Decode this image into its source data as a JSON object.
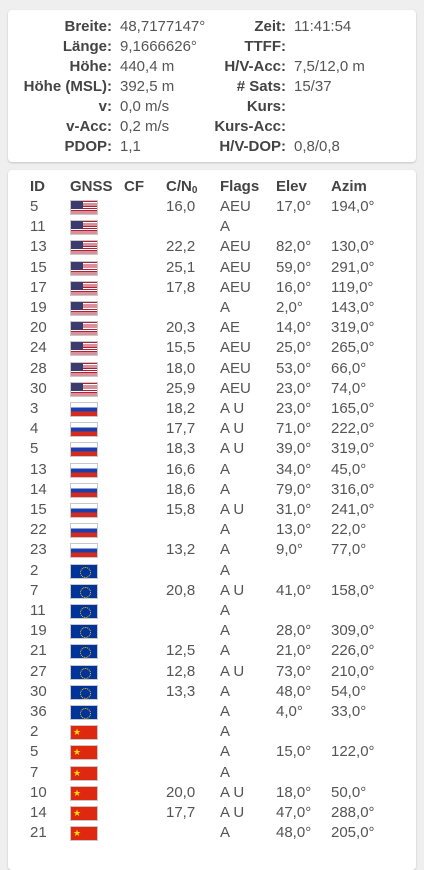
{
  "status": {
    "left": [
      {
        "label": "Breite:",
        "value": "48,7177147°"
      },
      {
        "label": "Länge:",
        "value": "9,1666626°"
      },
      {
        "label": "Höhe:",
        "value": "440,4 m"
      },
      {
        "label": "Höhe (MSL):",
        "value": "392,5 m"
      },
      {
        "label": "v:",
        "value": "0,0 m/s"
      },
      {
        "label": "v-Acc:",
        "value": "0,2 m/s"
      },
      {
        "label": "PDOP:",
        "value": "1,1"
      }
    ],
    "right": [
      {
        "label": "Zeit:",
        "value": "11:41:54"
      },
      {
        "label": "TTFF:",
        "value": ""
      },
      {
        "label": "H/V-Acc:",
        "value": "7,5/12,0 m"
      },
      {
        "label": "# Sats:",
        "value": "15/37"
      },
      {
        "label": "Kurs:",
        "value": ""
      },
      {
        "label": "Kurs-Acc:",
        "value": ""
      },
      {
        "label": "H/V-DOP:",
        "value": "0,8/0,8"
      }
    ]
  },
  "table": {
    "headers": {
      "id": "ID",
      "gnss": "GNSS",
      "cf": "CF",
      "cn": "C/N",
      "cn_sub": "0",
      "flags": "Flags",
      "elev": "Elev",
      "azim": "Azim"
    },
    "rows": [
      {
        "id": "5",
        "gnss": "us",
        "cf": "",
        "cn": "16,0",
        "flags": "AEU",
        "elev": "17,0°",
        "azim": "194,0°"
      },
      {
        "id": "11",
        "gnss": "us",
        "cf": "",
        "cn": "",
        "flags": "A",
        "elev": "",
        "azim": ""
      },
      {
        "id": "13",
        "gnss": "us",
        "cf": "",
        "cn": "22,2",
        "flags": "AEU",
        "elev": "82,0°",
        "azim": "130,0°"
      },
      {
        "id": "15",
        "gnss": "us",
        "cf": "",
        "cn": "25,1",
        "flags": "AEU",
        "elev": "59,0°",
        "azim": "291,0°"
      },
      {
        "id": "17",
        "gnss": "us",
        "cf": "",
        "cn": "17,8",
        "flags": "AEU",
        "elev": "16,0°",
        "azim": "119,0°"
      },
      {
        "id": "19",
        "gnss": "us",
        "cf": "",
        "cn": "",
        "flags": "A",
        "elev": "2,0°",
        "azim": "143,0°"
      },
      {
        "id": "20",
        "gnss": "us",
        "cf": "",
        "cn": "20,3",
        "flags": "AE",
        "elev": "14,0°",
        "azim": "319,0°"
      },
      {
        "id": "24",
        "gnss": "us",
        "cf": "",
        "cn": "15,5",
        "flags": "AEU",
        "elev": "25,0°",
        "azim": "265,0°"
      },
      {
        "id": "28",
        "gnss": "us",
        "cf": "",
        "cn": "18,0",
        "flags": "AEU",
        "elev": "53,0°",
        "azim": "66,0°"
      },
      {
        "id": "30",
        "gnss": "us",
        "cf": "",
        "cn": "25,9",
        "flags": "AEU",
        "elev": "23,0°",
        "azim": "74,0°"
      },
      {
        "id": "3",
        "gnss": "ru",
        "cf": "",
        "cn": "18,2",
        "flags": "A U",
        "elev": "23,0°",
        "azim": "165,0°"
      },
      {
        "id": "4",
        "gnss": "ru",
        "cf": "",
        "cn": "17,7",
        "flags": "A U",
        "elev": "71,0°",
        "azim": "222,0°"
      },
      {
        "id": "5",
        "gnss": "ru",
        "cf": "",
        "cn": "18,3",
        "flags": "A U",
        "elev": "39,0°",
        "azim": "319,0°"
      },
      {
        "id": "13",
        "gnss": "ru",
        "cf": "",
        "cn": "16,6",
        "flags": "A",
        "elev": "34,0°",
        "azim": "45,0°"
      },
      {
        "id": "14",
        "gnss": "ru",
        "cf": "",
        "cn": "18,6",
        "flags": "A",
        "elev": "79,0°",
        "azim": "316,0°"
      },
      {
        "id": "15",
        "gnss": "ru",
        "cf": "",
        "cn": "15,8",
        "flags": "A U",
        "elev": "31,0°",
        "azim": "241,0°"
      },
      {
        "id": "22",
        "gnss": "ru",
        "cf": "",
        "cn": "",
        "flags": "A",
        "elev": "13,0°",
        "azim": "22,0°"
      },
      {
        "id": "23",
        "gnss": "ru",
        "cf": "",
        "cn": "13,2",
        "flags": "A",
        "elev": "9,0°",
        "azim": "77,0°"
      },
      {
        "id": "2",
        "gnss": "eu",
        "cf": "",
        "cn": "",
        "flags": "A",
        "elev": "",
        "azim": ""
      },
      {
        "id": "7",
        "gnss": "eu",
        "cf": "",
        "cn": "20,8",
        "flags": "A U",
        "elev": "41,0°",
        "azim": "158,0°"
      },
      {
        "id": "11",
        "gnss": "eu",
        "cf": "",
        "cn": "",
        "flags": "A",
        "elev": "",
        "azim": ""
      },
      {
        "id": "19",
        "gnss": "eu",
        "cf": "",
        "cn": "",
        "flags": "A",
        "elev": "28,0°",
        "azim": "309,0°"
      },
      {
        "id": "21",
        "gnss": "eu",
        "cf": "",
        "cn": "12,5",
        "flags": "A",
        "elev": "21,0°",
        "azim": "226,0°"
      },
      {
        "id": "27",
        "gnss": "eu",
        "cf": "",
        "cn": "12,8",
        "flags": "A U",
        "elev": "73,0°",
        "azim": "210,0°"
      },
      {
        "id": "30",
        "gnss": "eu",
        "cf": "",
        "cn": "13,3",
        "flags": "A",
        "elev": "48,0°",
        "azim": "54,0°"
      },
      {
        "id": "36",
        "gnss": "eu",
        "cf": "",
        "cn": "",
        "flags": "A",
        "elev": "4,0°",
        "azim": "33,0°"
      },
      {
        "id": "2",
        "gnss": "cn",
        "cf": "",
        "cn": "",
        "flags": "A",
        "elev": "",
        "azim": ""
      },
      {
        "id": "5",
        "gnss": "cn",
        "cf": "",
        "cn": "",
        "flags": "A",
        "elev": "15,0°",
        "azim": "122,0°"
      },
      {
        "id": "7",
        "gnss": "cn",
        "cf": "",
        "cn": "",
        "flags": "A",
        "elev": "",
        "azim": ""
      },
      {
        "id": "10",
        "gnss": "cn",
        "cf": "",
        "cn": "20,0",
        "flags": "A U",
        "elev": "18,0°",
        "azim": "50,0°"
      },
      {
        "id": "14",
        "gnss": "cn",
        "cf": "",
        "cn": "17,7",
        "flags": "A U",
        "elev": "47,0°",
        "azim": "288,0°"
      },
      {
        "id": "21",
        "gnss": "cn",
        "cf": "",
        "cn": "",
        "flags": "A",
        "elev": "48,0°",
        "azim": "205,0°"
      }
    ]
  },
  "flag_icons": {
    "us": "us-flag-icon",
    "ru": "russia-flag-icon",
    "eu": "eu-flag-icon",
    "cn": "china-flag-icon"
  },
  "colors": {
    "background": "#efefef",
    "card": "#ffffff",
    "text": "#3a3a3a"
  }
}
